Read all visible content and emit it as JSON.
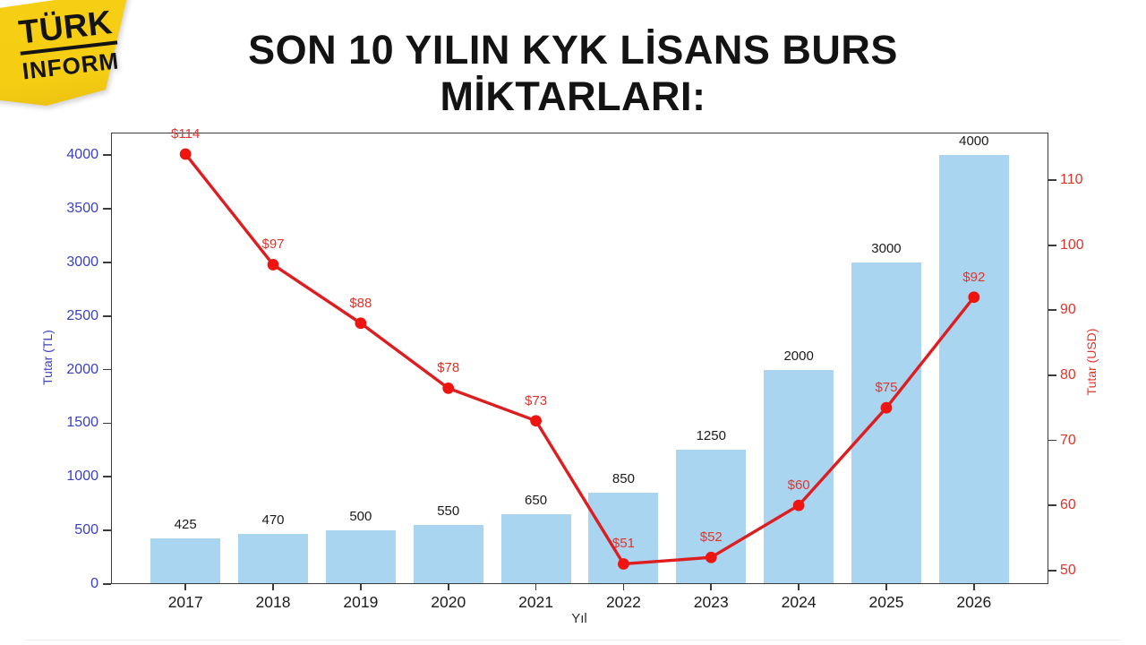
{
  "logo": {
    "line1": "TÜRK",
    "line2": "INFORM",
    "bg_color": "#f6cf14"
  },
  "title_line1": "SON 10 YILIN KYK LİSANS BURS",
  "title_line2": "MİKTARLARI:",
  "chart_data": {
    "type": "combo",
    "title": "SON 10 YILIN KYK LİSANS BURS MİKTARLARI:",
    "categories": [
      "2017",
      "2018",
      "2019",
      "2020",
      "2021",
      "2022",
      "2023",
      "2024",
      "2025",
      "2026"
    ],
    "xlabel": "Yıl",
    "grid": false,
    "legend": "none",
    "xlim": [
      -0.85,
      9.85
    ],
    "series": [
      {
        "name": "Tutar (TL)",
        "type": "bar",
        "axis": "left",
        "color": "#a9d5f1",
        "values": [
          425,
          470,
          500,
          550,
          650,
          850,
          1250,
          2000,
          3000,
          4000
        ],
        "value_labels": [
          "425",
          "470",
          "500",
          "550",
          "650",
          "850",
          "1250",
          "2000",
          "3000",
          "4000"
        ]
      },
      {
        "name": "Tutar (USD)",
        "type": "line",
        "axis": "right",
        "color": "#dd1e21",
        "marker_color": "#ee1510",
        "label_color": "#e0352b",
        "values": [
          114,
          97,
          88,
          78,
          73,
          51,
          52,
          60,
          75,
          92
        ],
        "value_labels": [
          "$114",
          "$97",
          "$88",
          "$78",
          "$73",
          "$51",
          "$52",
          "$60",
          "$75",
          "$92"
        ]
      }
    ],
    "left_axis": {
      "label": "Tutar (TL)",
      "color": "#3a40c2",
      "ticks": [
        "0",
        "500",
        "1000",
        "1500",
        "2000",
        "2500",
        "3000",
        "3500",
        "4000"
      ],
      "tick_values": [
        0,
        500,
        1000,
        1500,
        2000,
        2500,
        3000,
        3500,
        4000
      ],
      "range": [
        0,
        4209
      ]
    },
    "right_axis": {
      "label": "Tutar (USD)",
      "color": "#de352c",
      "ticks": [
        "50",
        "60",
        "70",
        "80",
        "90",
        "100",
        "110"
      ],
      "tick_values": [
        50,
        60,
        70,
        80,
        90,
        100,
        110
      ],
      "range": [
        47.9,
        117.3
      ]
    },
    "bar_value_color": "#1b1b1b",
    "year_label_color": "#1c1c1c"
  }
}
